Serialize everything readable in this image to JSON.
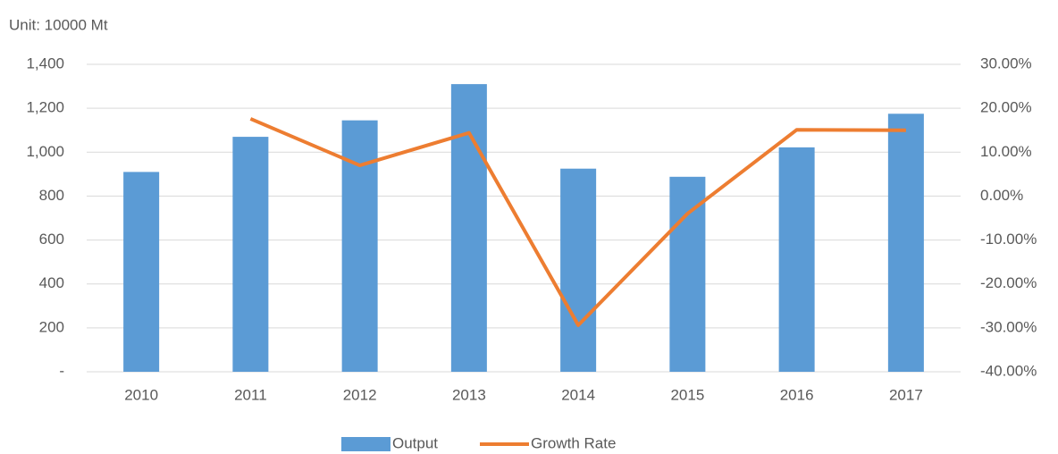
{
  "chart_data": {
    "type": "bar_line",
    "subtitle": "Unit: 10000  Mt",
    "categories": [
      "2010",
      "2011",
      "2012",
      "2013",
      "2014",
      "2015",
      "2016",
      "2017"
    ],
    "series": [
      {
        "name": "Output",
        "type": "bar",
        "color": "#5b9bd5",
        "values": [
          910,
          1070,
          1145,
          1310,
          925,
          888,
          1022,
          1175
        ]
      },
      {
        "name": "Growth Rate",
        "type": "line",
        "axis": "y2",
        "color": "#ed7d31",
        "values": [
          null,
          17.6,
          7.0,
          14.4,
          -29.4,
          -4.0,
          15.1,
          15.0
        ]
      }
    ],
    "ylim": [
      0,
      1400
    ],
    "yticks": [
      {
        "value": 0,
        "label": "-"
      },
      200,
      400,
      600,
      800,
      {
        "value": 1000,
        "label": "1,000"
      },
      {
        "value": 1200,
        "label": "1,200"
      },
      {
        "value": 1400,
        "label": "1,400"
      }
    ],
    "y2lim": [
      -40,
      30
    ],
    "y2ticks": [
      {
        "value": -40,
        "label": "-40.00%"
      },
      {
        "value": -30,
        "label": "-30.00%"
      },
      {
        "value": -20,
        "label": "-20.00%"
      },
      {
        "value": -10,
        "label": "-10.00%"
      },
      {
        "value": 0,
        "label": "0.00%"
      },
      {
        "value": 10,
        "label": "10.00%"
      },
      {
        "value": 20,
        "label": "20.00%"
      },
      {
        "value": 30,
        "label": "30.00%"
      }
    ],
    "grid": true,
    "legend": "bottom"
  }
}
